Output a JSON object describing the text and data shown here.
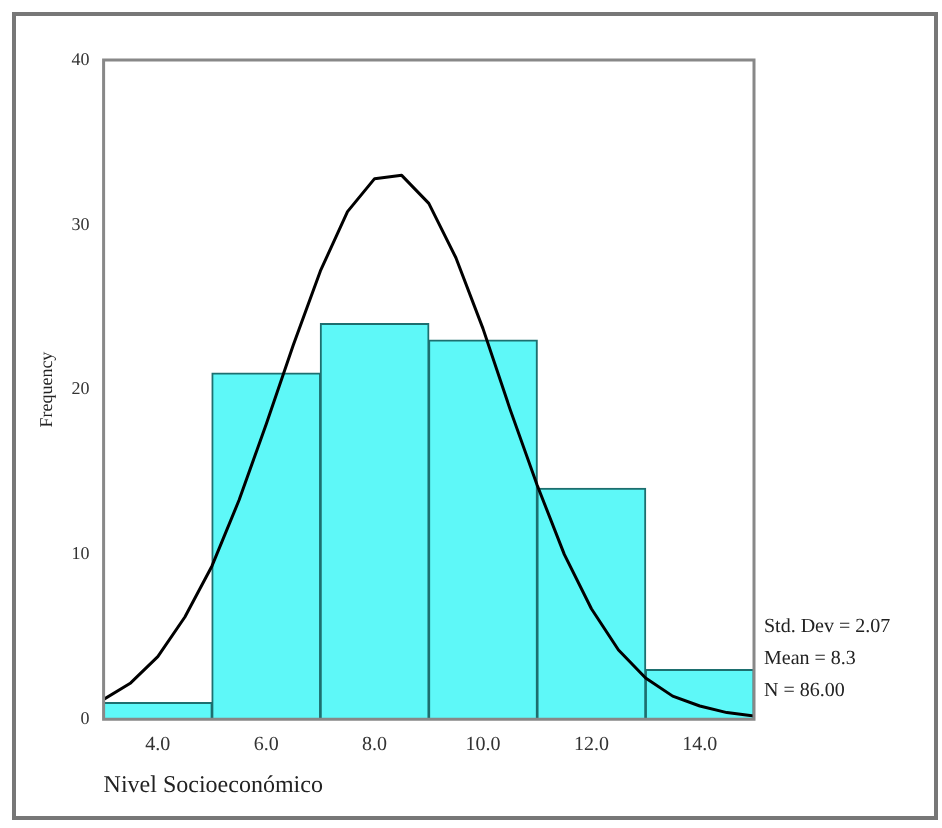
{
  "chart_data": {
    "type": "histogram",
    "xlabel": "Nivel Socioeconómico",
    "ylabel": "Frequency",
    "series": [
      {
        "bins": [
          3,
          5,
          7,
          9,
          11,
          13,
          15
        ],
        "values": [
          1,
          21,
          24,
          23,
          14,
          3
        ],
        "color": "#5ef8f8"
      },
      {
        "type": "line",
        "x": [
          3,
          3.5,
          4,
          4.5,
          5,
          5.5,
          6,
          6.5,
          7,
          7.5,
          8,
          8.5,
          9,
          9.5,
          10,
          10.5,
          11,
          11.5,
          12,
          12.5,
          13,
          13.5,
          14,
          14.5,
          15
        ],
        "values": [
          1.2,
          2.2,
          3.8,
          6.2,
          9.3,
          13.3,
          17.9,
          22.7,
          27.2,
          30.8,
          32.8,
          33,
          31.3,
          28,
          23.7,
          18.8,
          14.2,
          10,
          6.7,
          4.2,
          2.5,
          1.4,
          0.8,
          0.4,
          0.2
        ],
        "color": "#000000"
      }
    ],
    "xlim": [
      3,
      15
    ],
    "ylim": [
      0,
      40
    ],
    "xticks": [
      {
        "value": 4,
        "label": "4.0"
      },
      {
        "value": 6,
        "label": "6.0"
      },
      {
        "value": 8,
        "label": "8.0"
      },
      {
        "value": 10,
        "label": "10.0"
      },
      {
        "value": 12,
        "label": "12.0"
      },
      {
        "value": 14,
        "label": "14.0"
      }
    ],
    "yticks": [
      0,
      10,
      20,
      30,
      40
    ],
    "grid": false,
    "legend": false,
    "marker": "none",
    "line_style": "solid",
    "annotations": [
      "Std. Dev = 2.07",
      "Mean = 8.3",
      "N = 86.00"
    ]
  }
}
